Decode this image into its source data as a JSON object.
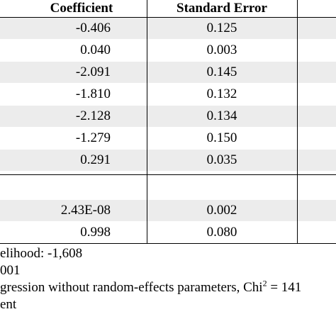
{
  "table": {
    "headers": {
      "coefficient": "Coefficient",
      "standard_error": "Standard Error"
    },
    "rows": [
      {
        "coefficient": "-0.406",
        "standard_error": "0.125",
        "shaded": true
      },
      {
        "coefficient": "0.040",
        "standard_error": "0.003",
        "shaded": false
      },
      {
        "coefficient": "-2.091",
        "standard_error": "0.145",
        "shaded": true
      },
      {
        "coefficient": "-1.810",
        "standard_error": "0.132",
        "shaded": false
      },
      {
        "coefficient": "-2.128",
        "standard_error": "0.134",
        "shaded": true
      },
      {
        "coefficient": "-1.279",
        "standard_error": "0.150",
        "shaded": false
      },
      {
        "coefficient": "0.291",
        "standard_error": "0.035",
        "shaded": true
      },
      {
        "coefficient": "",
        "standard_error": "",
        "shaded": false
      },
      {
        "coefficient": "2.43E-08",
        "standard_error": "0.002",
        "shaded": true
      },
      {
        "coefficient": "0.998",
        "standard_error": "0.080",
        "shaded": false
      }
    ]
  },
  "notes": {
    "line1": "elihood: -1,608",
    "line2": "001",
    "line3_text": "gression without random-effects parameters, Chi",
    "line3_sup": "2",
    "line3_tail": " = 141",
    "line4": "ent"
  },
  "colors": {
    "shade": "#ececec",
    "rule": "#000000"
  }
}
